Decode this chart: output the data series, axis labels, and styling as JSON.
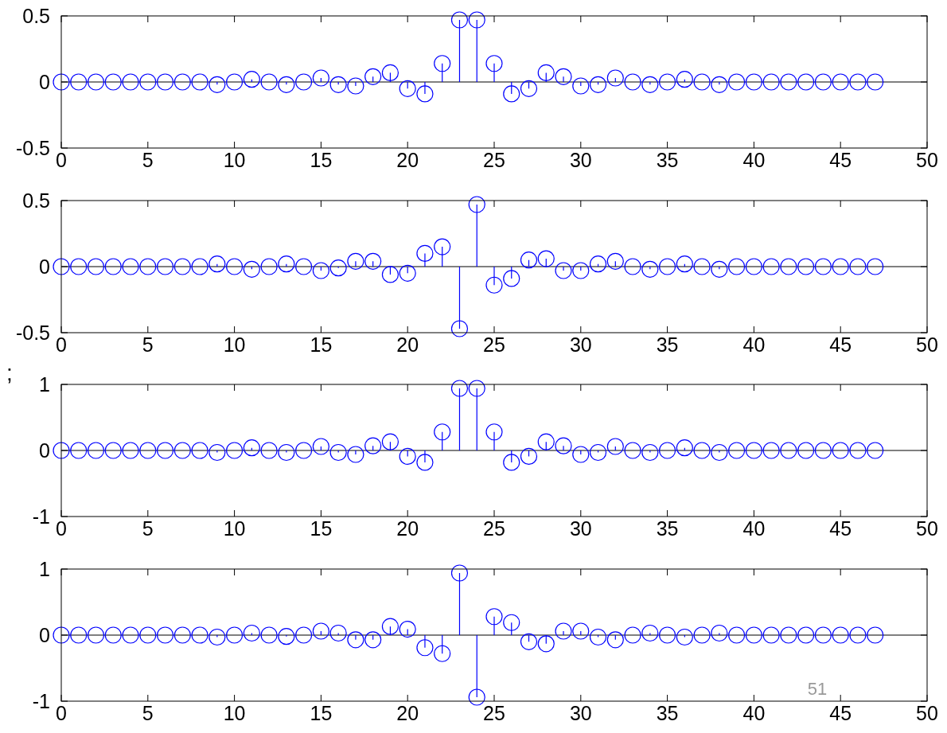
{
  "chart_data": [
    {
      "type": "lollipop",
      "x": [
        0,
        1,
        2,
        3,
        4,
        5,
        6,
        7,
        8,
        9,
        10,
        11,
        12,
        13,
        14,
        15,
        16,
        17,
        18,
        19,
        20,
        21,
        22,
        23,
        24,
        25,
        26,
        27,
        28,
        29,
        30,
        31,
        32,
        33,
        34,
        35,
        36,
        37,
        38,
        39,
        40,
        41,
        42,
        43,
        44,
        45,
        46,
        47
      ],
      "xlim": [
        0,
        50
      ],
      "xticks": [
        0,
        5,
        10,
        15,
        20,
        25,
        30,
        35,
        40,
        45,
        50
      ],
      "ylim": [
        -0.5,
        0.5
      ],
      "yticks": [
        -0.5,
        0,
        0.5
      ],
      "marker": "circle",
      "ref_lines": [
        {
          "axis": "y",
          "value": 0,
          "color": "#000000"
        }
      ],
      "series": [
        {
          "color": "#0000ff",
          "values": [
            0,
            0,
            0,
            0,
            0,
            0,
            0,
            0,
            0,
            -0.02,
            0,
            0.02,
            0,
            -0.02,
            0,
            0.03,
            -0.02,
            -0.03,
            0.04,
            0.07,
            -0.05,
            -0.09,
            0.14,
            0.47,
            0.47,
            0.14,
            -0.09,
            -0.05,
            0.07,
            0.04,
            -0.03,
            -0.02,
            0.03,
            0,
            -0.02,
            0,
            0.02,
            0,
            -0.02,
            0,
            0,
            0,
            0,
            0,
            0,
            0,
            0,
            0
          ]
        }
      ]
    },
    {
      "type": "lollipop",
      "x": [
        0,
        1,
        2,
        3,
        4,
        5,
        6,
        7,
        8,
        9,
        10,
        11,
        12,
        13,
        14,
        15,
        16,
        17,
        18,
        19,
        20,
        21,
        22,
        23,
        24,
        25,
        26,
        27,
        28,
        29,
        30,
        31,
        32,
        33,
        34,
        35,
        36,
        37,
        38,
        39,
        40,
        41,
        42,
        43,
        44,
        45,
        46,
        47
      ],
      "xlim": [
        0,
        50
      ],
      "xticks": [
        0,
        5,
        10,
        15,
        20,
        25,
        30,
        35,
        40,
        45,
        50
      ],
      "ylim": [
        -0.5,
        0.5
      ],
      "yticks": [
        -0.5,
        0,
        0.5
      ],
      "marker": "circle",
      "annotations": [
        ";"
      ],
      "ref_lines": [
        {
          "axis": "y",
          "value": 0,
          "color": "#000000"
        }
      ],
      "series": [
        {
          "color": "#0000ff",
          "values": [
            0,
            0,
            0,
            0,
            0,
            0,
            0,
            0,
            0,
            0.02,
            0,
            -0.02,
            0,
            0.02,
            0,
            -0.03,
            -0.01,
            0.04,
            0.04,
            -0.06,
            -0.05,
            0.1,
            0.15,
            -0.47,
            0.47,
            -0.14,
            -0.09,
            0.05,
            0.06,
            -0.03,
            -0.03,
            0.02,
            0.04,
            0,
            -0.02,
            0,
            0.02,
            0,
            -0.02,
            0,
            0,
            0,
            0,
            0,
            0,
            0,
            0,
            0
          ]
        }
      ]
    },
    {
      "type": "lollipop",
      "x": [
        0,
        1,
        2,
        3,
        4,
        5,
        6,
        7,
        8,
        9,
        10,
        11,
        12,
        13,
        14,
        15,
        16,
        17,
        18,
        19,
        20,
        21,
        22,
        23,
        24,
        25,
        26,
        27,
        28,
        29,
        30,
        31,
        32,
        33,
        34,
        35,
        36,
        37,
        38,
        39,
        40,
        41,
        42,
        43,
        44,
        45,
        46,
        47
      ],
      "xlim": [
        0,
        50
      ],
      "xticks": [
        0,
        5,
        10,
        15,
        20,
        25,
        30,
        35,
        40,
        45,
        50
      ],
      "ylim": [
        -1,
        1
      ],
      "yticks": [
        -1,
        0,
        1
      ],
      "marker": "circle",
      "ref_lines": [
        {
          "axis": "y",
          "value": 0,
          "color": "#000000"
        }
      ],
      "series": [
        {
          "color": "#0000ff",
          "values": [
            0,
            0,
            0,
            0,
            0,
            0,
            0,
            0,
            0,
            -0.03,
            0,
            0.04,
            0,
            -0.03,
            0,
            0.06,
            -0.03,
            -0.06,
            0.07,
            0.13,
            -0.09,
            -0.18,
            0.28,
            0.94,
            0.94,
            0.28,
            -0.18,
            -0.09,
            0.13,
            0.07,
            -0.06,
            -0.03,
            0.06,
            0,
            -0.03,
            0,
            0.04,
            0,
            -0.03,
            0,
            0,
            0,
            0,
            0,
            0,
            0,
            0,
            0
          ]
        }
      ]
    },
    {
      "type": "lollipop",
      "x": [
        0,
        1,
        2,
        3,
        4,
        5,
        6,
        7,
        8,
        9,
        10,
        11,
        12,
        13,
        14,
        15,
        16,
        17,
        18,
        19,
        20,
        21,
        22,
        23,
        24,
        25,
        26,
        27,
        28,
        29,
        30,
        31,
        32,
        33,
        34,
        35,
        36,
        37,
        38,
        39,
        40,
        41,
        42,
        43,
        44,
        45,
        46,
        47
      ],
      "xlim": [
        0,
        50
      ],
      "xticks": [
        0,
        5,
        10,
        15,
        20,
        25,
        30,
        35,
        40,
        45,
        50
      ],
      "ylim": [
        -1,
        1
      ],
      "yticks": [
        -1,
        0,
        1
      ],
      "marker": "circle",
      "annotations": [
        "51"
      ],
      "ref_lines": [
        {
          "axis": "y",
          "value": 0,
          "color": "#000000"
        }
      ],
      "series": [
        {
          "color": "#0000ff",
          "values": [
            0,
            0,
            0,
            0,
            0,
            0,
            0,
            0,
            0,
            -0.03,
            0,
            0.03,
            0,
            -0.02,
            0,
            0.06,
            0.03,
            -0.07,
            -0.07,
            0.13,
            0.09,
            -0.19,
            -0.28,
            0.94,
            -0.94,
            0.28,
            0.19,
            -0.1,
            -0.13,
            0.06,
            0.06,
            -0.03,
            -0.07,
            0,
            0.03,
            0,
            -0.03,
            0,
            0.03,
            0,
            0,
            0,
            0,
            0,
            0,
            0,
            0,
            0
          ]
        }
      ]
    }
  ]
}
